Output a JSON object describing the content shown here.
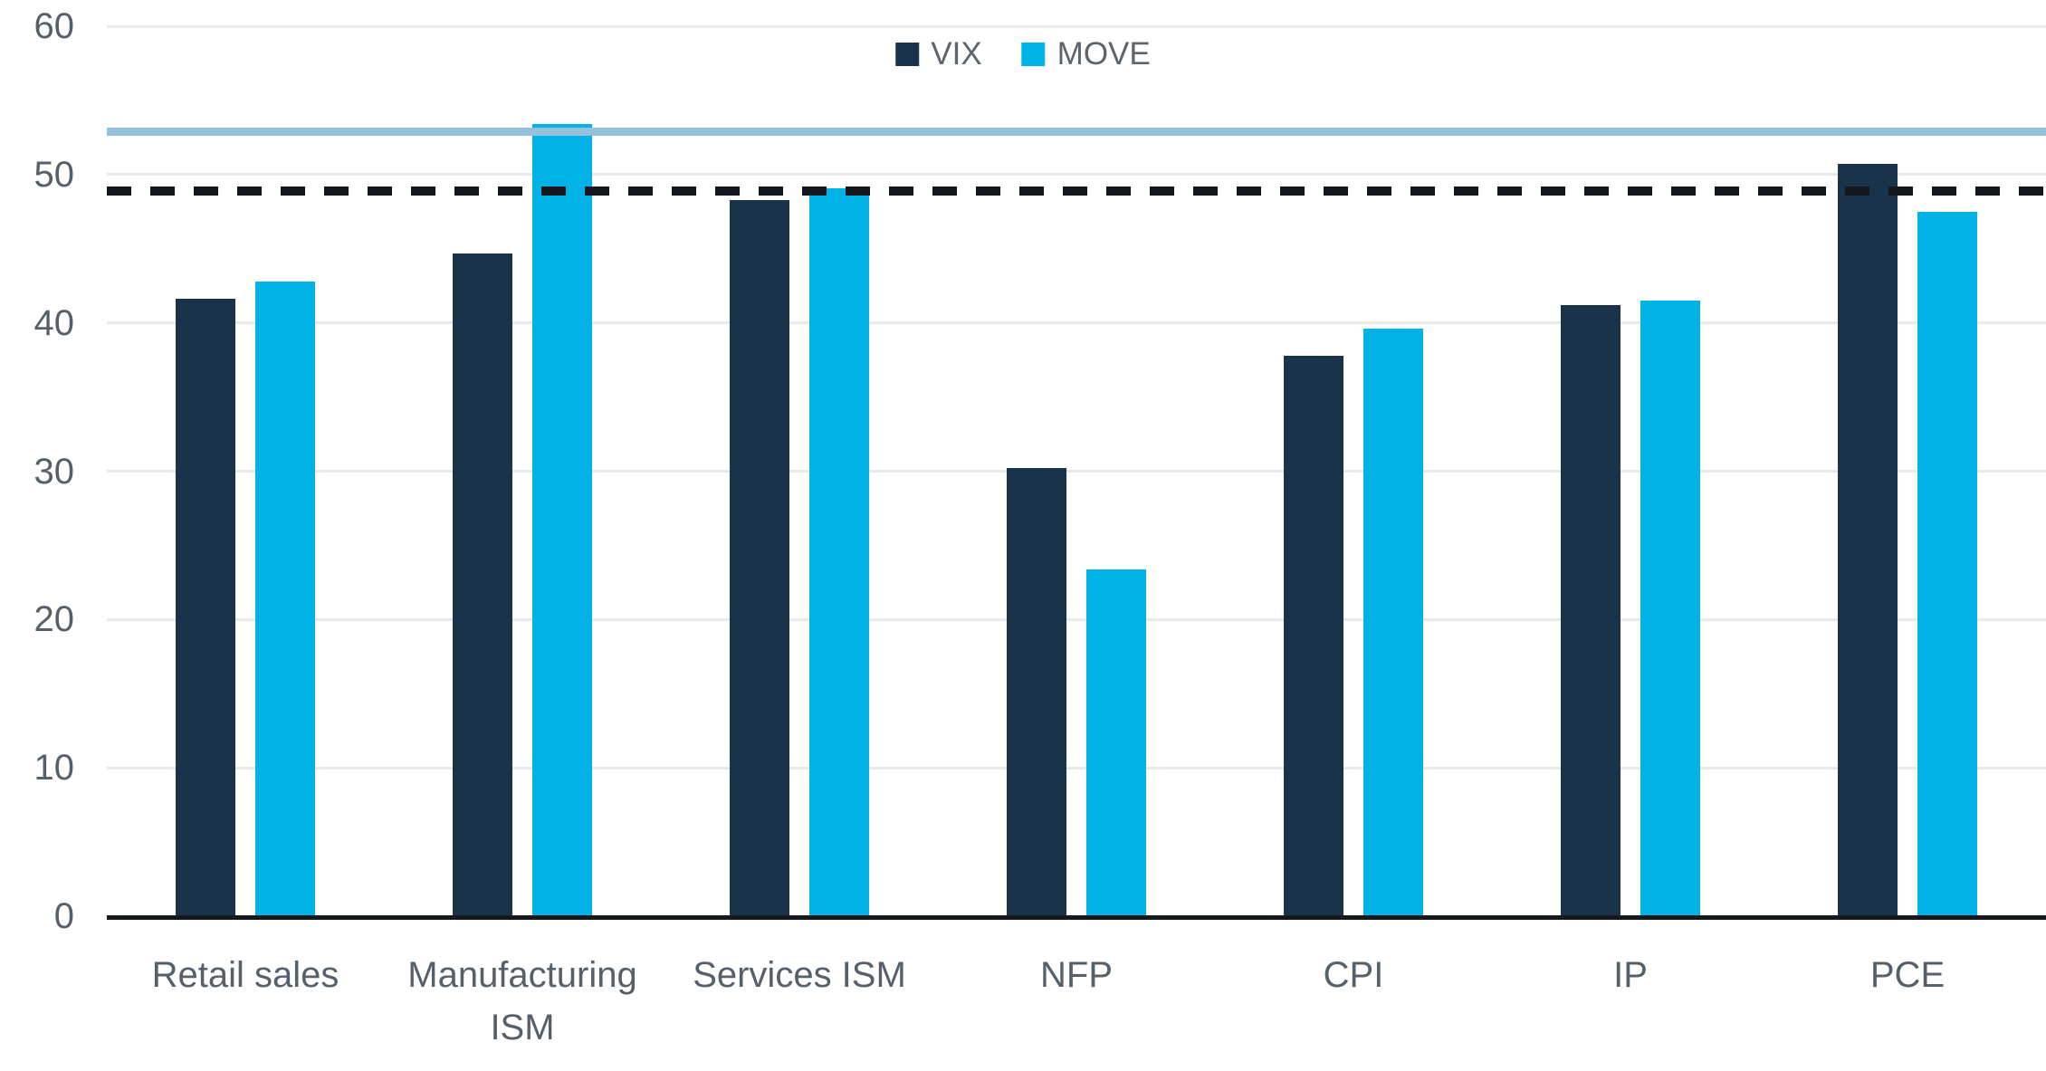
{
  "chart_data": {
    "type": "bar",
    "categories": [
      "Retail sales",
      "Manufacturing ISM",
      "Services ISM",
      "NFP",
      "CPI",
      "IP",
      "PCE"
    ],
    "series": [
      {
        "name": "VIX",
        "color": "#18334a",
        "values": [
          41.6,
          44.7,
          48.3,
          30.2,
          37.8,
          41.2,
          50.7
        ]
      },
      {
        "name": "MOVE",
        "color": "#00b2e5",
        "values": [
          42.8,
          53.4,
          49.1,
          23.4,
          39.6,
          41.5,
          47.5
        ]
      }
    ],
    "reference_lines": [
      {
        "name": "solid-blue-line",
        "value": 52.9,
        "color": "#96c1dd",
        "style": "solid"
      },
      {
        "name": "dashed-black-line",
        "value": 48.9,
        "color": "#14181c",
        "style": "dashed"
      }
    ],
    "title": "",
    "xlabel": "",
    "ylabel": "",
    "ylim": [
      0,
      60
    ],
    "yticks": [
      0,
      10,
      20,
      30,
      40,
      50,
      60
    ],
    "grid": true,
    "legend_position": "top-center"
  },
  "style_colors": {
    "gridline": "#e7eaed",
    "axis_line": "#15181c",
    "tick_text": "#55606b",
    "label_text": "#55606b",
    "legend_text": "#5c646c",
    "background": "#ffffff"
  }
}
